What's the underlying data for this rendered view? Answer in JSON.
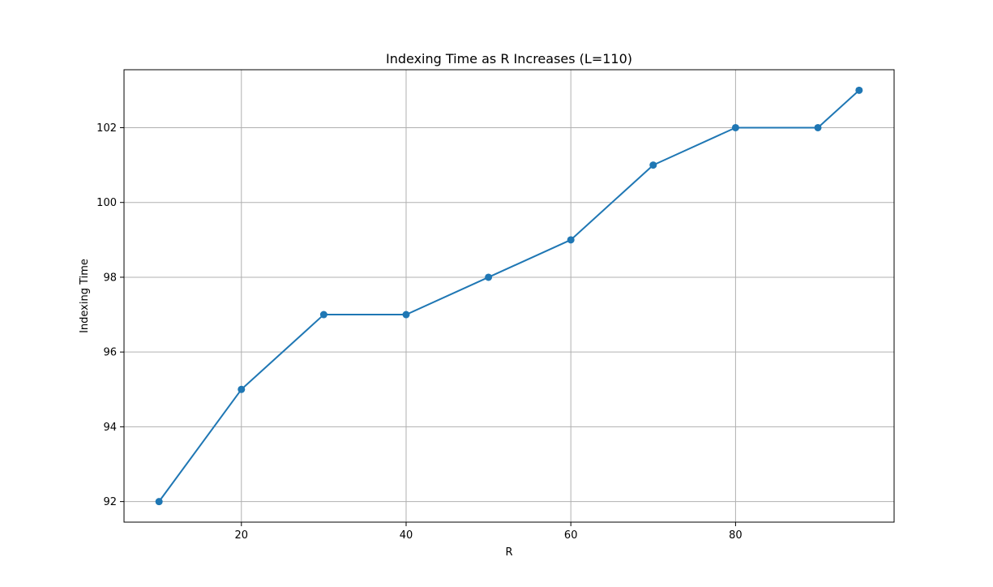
{
  "chart_data": {
    "type": "line",
    "title": "Indexing Time as R Increases (L=110)",
    "xlabel": "R",
    "ylabel": "Indexing Time",
    "x": [
      10,
      20,
      30,
      40,
      50,
      60,
      70,
      80,
      90,
      95
    ],
    "series": [
      {
        "values": [
          92,
          95,
          97,
          97,
          98,
          99,
          101,
          102,
          102,
          103
        ],
        "color": "#1f77b4",
        "marker": "circle"
      }
    ],
    "xlim": [
      5.75,
      99.25
    ],
    "ylim": [
      91.45,
      103.55
    ],
    "xticks": [
      20,
      40,
      60,
      80
    ],
    "xtick_labels": [
      "20",
      "40",
      "60",
      "80"
    ],
    "yticks": [
      92,
      94,
      96,
      98,
      100,
      102
    ],
    "ytick_labels": [
      "92",
      "94",
      "96",
      "98",
      "100",
      "102"
    ],
    "grid": true,
    "legend": "none"
  }
}
